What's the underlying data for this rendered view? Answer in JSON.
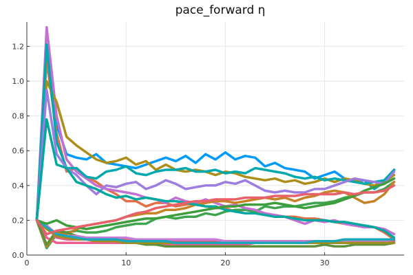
{
  "chart_data": {
    "type": "line",
    "title": "pace_forward η",
    "xlabel": "",
    "ylabel": "",
    "xlim": [
      0,
      38
    ],
    "ylim": [
      0,
      1.34
    ],
    "xticks": [
      0,
      10,
      20,
      30
    ],
    "yticks": [
      0.0,
      0.2,
      0.4,
      0.6,
      0.8,
      1.0,
      1.2
    ],
    "xtick_labels": [
      "0",
      "10",
      "20",
      "30"
    ],
    "ytick_labels": [
      "0.0",
      "0.2",
      "0.4",
      "0.6",
      "0.8",
      "1.0",
      "1.2"
    ],
    "grid": true,
    "legend": "none",
    "x": [
      1,
      2,
      3,
      4,
      5,
      6,
      7,
      8,
      9,
      10,
      11,
      12,
      13,
      14,
      15,
      16,
      17,
      18,
      19,
      20,
      21,
      22,
      23,
      24,
      25,
      26,
      27,
      28,
      29,
      30,
      31,
      32,
      33,
      34,
      35,
      36,
      37
    ],
    "series": [
      {
        "color": "#009AFA",
        "values": [
          0.2,
          1.15,
          0.75,
          0.58,
          0.56,
          0.55,
          0.58,
          0.53,
          0.52,
          0.51,
          0.5,
          0.52,
          0.54,
          0.56,
          0.54,
          0.57,
          0.53,
          0.58,
          0.55,
          0.59,
          0.55,
          0.57,
          0.56,
          0.51,
          0.53,
          0.5,
          0.49,
          0.48,
          0.44,
          0.46,
          0.48,
          0.44,
          0.42,
          0.43,
          0.38,
          0.42,
          0.49
        ]
      },
      {
        "color": "#E36F47",
        "values": [
          0.2,
          1.12,
          0.7,
          0.48,
          0.5,
          0.45,
          0.42,
          0.38,
          0.35,
          0.31,
          0.31,
          0.28,
          0.3,
          0.3,
          0.28,
          0.29,
          0.3,
          0.28,
          0.27,
          0.27,
          0.25,
          0.26,
          0.25,
          0.24,
          0.23,
          0.22,
          0.22,
          0.21,
          0.21,
          0.2,
          0.19,
          0.18,
          0.17,
          0.17,
          0.16,
          0.13,
          0.09
        ]
      },
      {
        "color": "#3EA44E",
        "values": [
          0.2,
          0.04,
          0.12,
          0.13,
          0.14,
          0.13,
          0.13,
          0.14,
          0.16,
          0.17,
          0.18,
          0.18,
          0.21,
          0.22,
          0.21,
          0.22,
          0.22,
          0.24,
          0.23,
          0.25,
          0.26,
          0.26,
          0.25,
          0.28,
          0.27,
          0.28,
          0.28,
          0.29,
          0.3,
          0.3,
          0.31,
          0.33,
          0.34,
          0.36,
          0.36,
          0.38,
          0.42
        ]
      },
      {
        "color": "#C271D2",
        "values": [
          0.2,
          1.31,
          0.8,
          0.55,
          0.48,
          0.44,
          0.4,
          0.38,
          0.37,
          0.36,
          0.35,
          0.33,
          0.32,
          0.3,
          0.33,
          0.31,
          0.3,
          0.32,
          0.3,
          0.28,
          0.29,
          0.27,
          0.26,
          0.24,
          0.23,
          0.22,
          0.2,
          0.18,
          0.2,
          0.19,
          0.2,
          0.18,
          0.17,
          0.16,
          0.16,
          0.15,
          0.12
        ]
      },
      {
        "color": "#AC8E18",
        "values": [
          0.2,
          1.0,
          0.88,
          0.68,
          0.63,
          0.59,
          0.55,
          0.53,
          0.54,
          0.56,
          0.52,
          0.54,
          0.49,
          0.52,
          0.49,
          0.48,
          0.49,
          0.48,
          0.46,
          0.48,
          0.47,
          0.45,
          0.44,
          0.43,
          0.44,
          0.42,
          0.43,
          0.41,
          0.42,
          0.44,
          0.42,
          0.44,
          0.43,
          0.41,
          0.4,
          0.42,
          0.46
        ]
      },
      {
        "color": "#00A9AD",
        "values": [
          0.2,
          1.21,
          0.65,
          0.5,
          0.5,
          0.45,
          0.44,
          0.48,
          0.49,
          0.51,
          0.47,
          0.46,
          0.48,
          0.49,
          0.49,
          0.5,
          0.48,
          0.48,
          0.49,
          0.47,
          0.48,
          0.47,
          0.5,
          0.49,
          0.48,
          0.47,
          0.45,
          0.44,
          0.45,
          0.43,
          0.44,
          0.43,
          0.42,
          0.41,
          0.42,
          0.43,
          0.49
        ]
      },
      {
        "color": "#ED5E93",
        "values": [
          0.2,
          0.1,
          0.07,
          0.07,
          0.07,
          0.07,
          0.07,
          0.07,
          0.07,
          0.07,
          0.07,
          0.07,
          0.06,
          0.06,
          0.06,
          0.06,
          0.06,
          0.06,
          0.06,
          0.06,
          0.06,
          0.06,
          0.07,
          0.07,
          0.07,
          0.07,
          0.07,
          0.07,
          0.07,
          0.07,
          0.07,
          0.07,
          0.07,
          0.07,
          0.07,
          0.07,
          0.07
        ]
      },
      {
        "color": "#C68226",
        "values": [
          0.2,
          0.05,
          0.13,
          0.12,
          0.15,
          0.17,
          0.18,
          0.19,
          0.2,
          0.22,
          0.23,
          0.24,
          0.24,
          0.26,
          0.26,
          0.27,
          0.29,
          0.3,
          0.31,
          0.31,
          0.3,
          0.31,
          0.32,
          0.33,
          0.32,
          0.33,
          0.31,
          0.33,
          0.34,
          0.36,
          0.37,
          0.36,
          0.33,
          0.3,
          0.31,
          0.35,
          0.42
        ]
      },
      {
        "color": "#9E7DE0",
        "values": [
          0.2,
          0.95,
          0.58,
          0.5,
          0.46,
          0.4,
          0.35,
          0.4,
          0.39,
          0.41,
          0.42,
          0.38,
          0.4,
          0.43,
          0.41,
          0.38,
          0.39,
          0.4,
          0.4,
          0.42,
          0.41,
          0.43,
          0.4,
          0.37,
          0.36,
          0.37,
          0.36,
          0.36,
          0.38,
          0.38,
          0.4,
          0.42,
          0.44,
          0.43,
          0.42,
          0.41,
          0.48
        ]
      },
      {
        "color": "#608F3A",
        "values": [
          0.2,
          0.06,
          0.14,
          0.13,
          0.11,
          0.09,
          0.08,
          0.08,
          0.08,
          0.07,
          0.07,
          0.06,
          0.06,
          0.05,
          0.05,
          0.05,
          0.05,
          0.05,
          0.05,
          0.05,
          0.05,
          0.05,
          0.05,
          0.05,
          0.05,
          0.05,
          0.05,
          0.05,
          0.05,
          0.06,
          0.05,
          0.05,
          0.06,
          0.06,
          0.06,
          0.06,
          0.07
        ]
      },
      {
        "color": "#00A8A0",
        "values": [
          0.2,
          0.78,
          0.52,
          0.5,
          0.42,
          0.4,
          0.38,
          0.35,
          0.33,
          0.34,
          0.32,
          0.33,
          0.32,
          0.31,
          0.31,
          0.3,
          0.29,
          0.28,
          0.28,
          0.26,
          0.25,
          0.24,
          0.24,
          0.23,
          0.22,
          0.22,
          0.21,
          0.2,
          0.2,
          0.2,
          0.19,
          0.19,
          0.18,
          0.17,
          0.16,
          0.14,
          0.1
        ]
      },
      {
        "color": "#E0607A",
        "values": [
          0.2,
          0.16,
          0.1,
          0.09,
          0.09,
          0.09,
          0.09,
          0.09,
          0.09,
          0.09,
          0.09,
          0.09,
          0.08,
          0.08,
          0.08,
          0.08,
          0.08,
          0.08,
          0.08,
          0.08,
          0.08,
          0.08,
          0.08,
          0.08,
          0.08,
          0.08,
          0.08,
          0.08,
          0.08,
          0.08,
          0.08,
          0.08,
          0.08,
          0.08,
          0.08,
          0.08,
          0.08
        ]
      },
      {
        "color": "#C77DD8",
        "values": [
          0.2,
          0.17,
          0.12,
          0.11,
          0.11,
          0.1,
          0.1,
          0.1,
          0.1,
          0.1,
          0.09,
          0.09,
          0.09,
          0.09,
          0.09,
          0.09,
          0.09,
          0.09,
          0.09,
          0.08,
          0.08,
          0.08,
          0.08,
          0.08,
          0.08,
          0.08,
          0.08,
          0.08,
          0.08,
          0.08,
          0.08,
          0.08,
          0.08,
          0.08,
          0.08,
          0.08,
          0.07
        ]
      },
      {
        "color": "#9C8F20",
        "values": [
          0.2,
          0.15,
          0.11,
          0.1,
          0.09,
          0.09,
          0.08,
          0.08,
          0.08,
          0.07,
          0.07,
          0.07,
          0.07,
          0.07,
          0.07,
          0.07,
          0.07,
          0.07,
          0.07,
          0.07,
          0.07,
          0.07,
          0.07,
          0.07,
          0.07,
          0.07,
          0.07,
          0.07,
          0.07,
          0.07,
          0.07,
          0.07,
          0.07,
          0.07,
          0.07,
          0.07,
          0.07
        ]
      },
      {
        "color": "#1AA8B8",
        "values": [
          0.2,
          0.16,
          0.12,
          0.11,
          0.1,
          0.09,
          0.09,
          0.09,
          0.09,
          0.08,
          0.08,
          0.08,
          0.08,
          0.08,
          0.07,
          0.07,
          0.07,
          0.07,
          0.07,
          0.07,
          0.07,
          0.07,
          0.07,
          0.07,
          0.07,
          0.07,
          0.07,
          0.07,
          0.08,
          0.08,
          0.08,
          0.09,
          0.09,
          0.09,
          0.09,
          0.09,
          0.09
        ]
      },
      {
        "color": "#3C9F3C",
        "values": [
          0.2,
          0.18,
          0.2,
          0.17,
          0.16,
          0.15,
          0.16,
          0.17,
          0.18,
          0.19,
          0.2,
          0.21,
          0.21,
          0.22,
          0.23,
          0.24,
          0.25,
          0.26,
          0.27,
          0.28,
          0.28,
          0.29,
          0.29,
          0.29,
          0.3,
          0.29,
          0.28,
          0.27,
          0.28,
          0.29,
          0.3,
          0.32,
          0.34,
          0.37,
          0.39,
          0.41,
          0.44
        ]
      },
      {
        "color": "#E8606A",
        "values": [
          0.2,
          0.12,
          0.14,
          0.15,
          0.16,
          0.17,
          0.18,
          0.19,
          0.2,
          0.22,
          0.24,
          0.25,
          0.27,
          0.28,
          0.29,
          0.3,
          0.31,
          0.31,
          0.32,
          0.32,
          0.32,
          0.33,
          0.33,
          0.33,
          0.34,
          0.34,
          0.34,
          0.35,
          0.35,
          0.35,
          0.35,
          0.36,
          0.35,
          0.36,
          0.36,
          0.37,
          0.4
        ]
      }
    ]
  }
}
